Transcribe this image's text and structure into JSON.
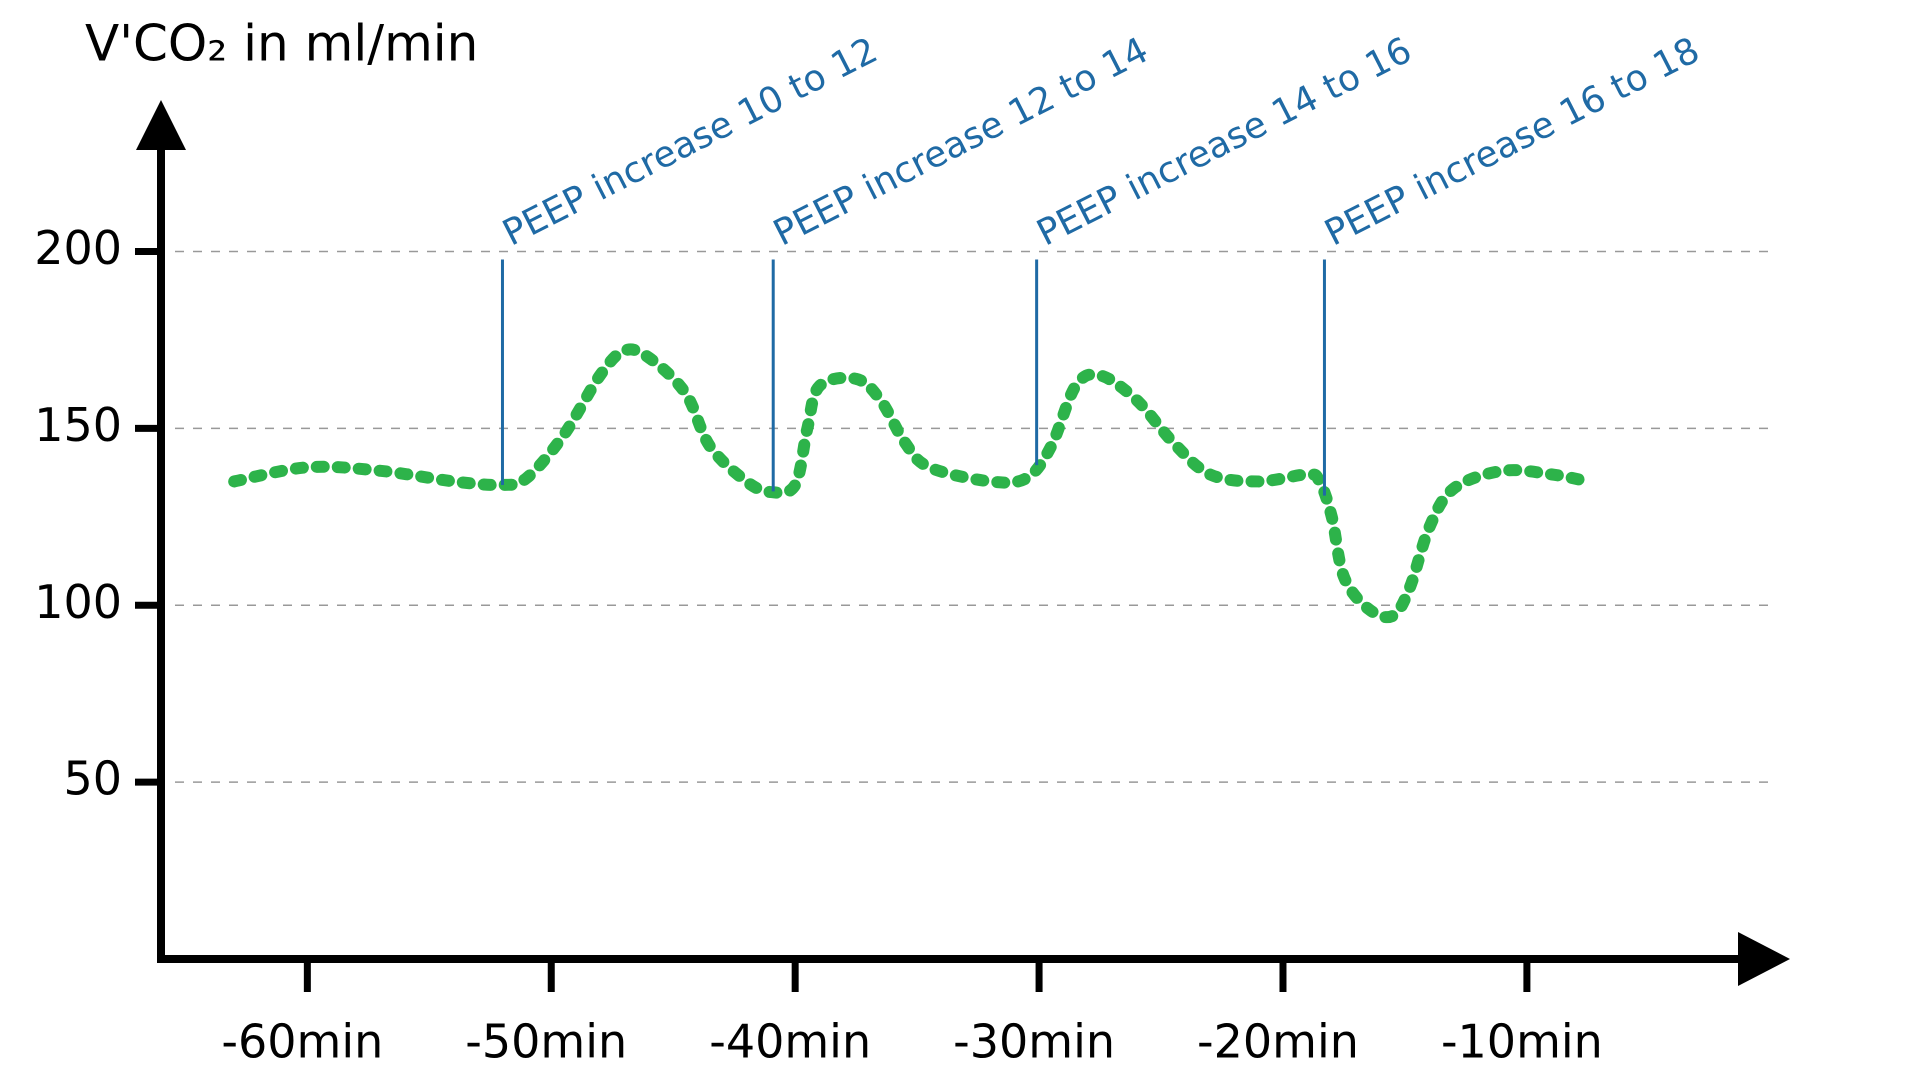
{
  "chart_data": {
    "type": "line",
    "y_axis_label": "V'CO₂ in ml/min",
    "x": [
      -63,
      -60,
      -57,
      -54,
      -52,
      -51,
      -49.5,
      -48,
      -47,
      -46,
      -44.5,
      -43.5,
      -42,
      -41,
      -40,
      -39.5,
      -39,
      -37.5,
      -36.5,
      -35.5,
      -34.5,
      -32,
      -30.5,
      -29.5,
      -28.5,
      -27.5,
      -26,
      -24.5,
      -23,
      -21,
      -19,
      -18.5,
      -18,
      -17.5,
      -16.5,
      -15.5,
      -14.8,
      -14,
      -13,
      -11,
      -9,
      -7.5
    ],
    "series": [
      {
        "color": "#2db34a",
        "values": [
          135,
          139,
          138,
          135,
          134,
          136,
          148,
          165,
          172,
          170,
          160,
          145,
          135,
          132,
          134,
          150,
          162,
          164,
          158,
          146,
          139,
          135,
          136,
          145,
          162,
          165,
          158,
          146,
          137,
          135,
          137,
          135,
          125,
          108,
          99,
          97,
          105,
          122,
          133,
          138,
          137,
          135
        ]
      }
    ],
    "xlim": [
      -66,
      0.5
    ],
    "ylim": [
      0,
      240
    ],
    "xticks": [
      {
        "value": -60,
        "label": "-60min"
      },
      {
        "value": -50,
        "label": "-50min"
      },
      {
        "value": -40,
        "label": "-40min"
      },
      {
        "value": -30,
        "label": "-30min"
      },
      {
        "value": -20,
        "label": "-20min"
      },
      {
        "value": -10,
        "label": "-10min"
      }
    ],
    "yticks": [
      50,
      100,
      150,
      200
    ],
    "grid": true,
    "annotation_color": "#1f6aa5",
    "annotations": [
      {
        "text": "PEEP increase 10 to 12",
        "x": -52
      },
      {
        "text": "PEEP increase 12 to 14",
        "x": -40.9
      },
      {
        "text": "PEEP increase 14 to 16",
        "x": -30.1
      },
      {
        "text": "PEEP increase 16 to 18",
        "x": -18.3
      }
    ]
  }
}
